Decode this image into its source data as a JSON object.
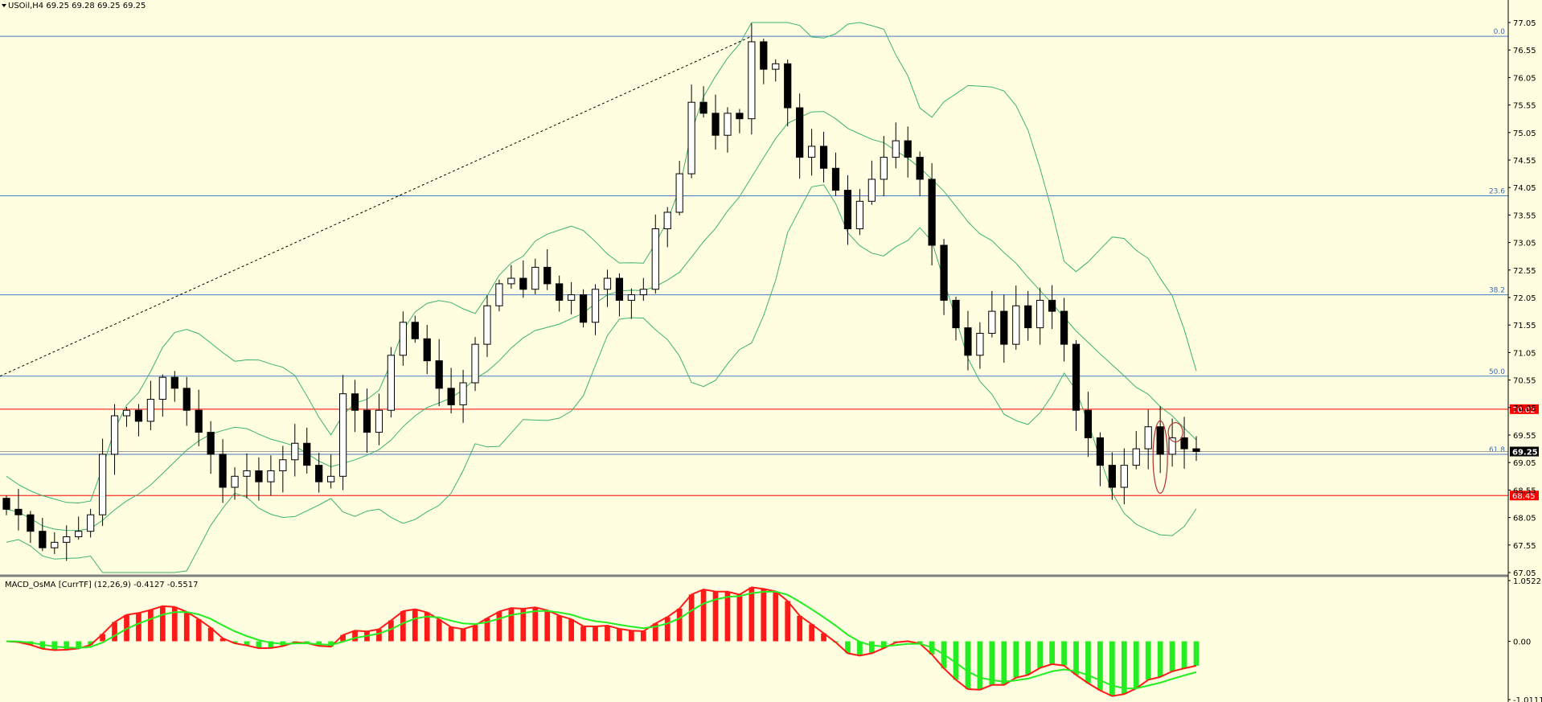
{
  "header": {
    "symbol_line": "USOil,H4  69.25 69.28 69.25 69.25"
  },
  "indicator": {
    "label": "MACD_OsMA [CurrTF] (12,26,9) -0.4127 -0.5517",
    "axis_labels": [
      "1.0522",
      "0.00",
      "-1.0111"
    ]
  },
  "price_axis": {
    "labels": [
      "77.05",
      "76.55",
      "76.05",
      "75.55",
      "75.05",
      "74.55",
      "74.05",
      "73.55",
      "73.05",
      "72.55",
      "72.05",
      "71.55",
      "71.05",
      "70.55",
      "70.05",
      "69.55",
      "69.05",
      "68.55",
      "68.05",
      "67.55",
      "67.05"
    ]
  },
  "fib_levels": [
    {
      "label": "0.0",
      "price": 76.8
    },
    {
      "label": "23.6",
      "price": 73.9
    },
    {
      "label": "38.2",
      "price": 72.1
    },
    {
      "label": "50.0",
      "price": 70.62
    },
    {
      "label": "61.8",
      "price": 69.2
    }
  ],
  "horizontal_levels": [
    {
      "label": "70.02",
      "price": 70.02,
      "color": "#ff0000"
    },
    {
      "label": "68.45",
      "price": 68.45,
      "color": "#ff0000"
    }
  ],
  "current_price": {
    "label": "69.25",
    "price": 69.25
  },
  "colors": {
    "background": "#fffee0",
    "bands": "#3cb371",
    "fib": "#4a7cc7",
    "level": "#ff0000",
    "macd_up": "#ff1a1a",
    "macd_down": "#22ee22",
    "candle_bull": "#ffffff",
    "candle_bear": "#000000"
  },
  "chart_data": {
    "type": "candlestick",
    "timeframe": "H4",
    "symbol": "USOil",
    "closes": [
      68.2,
      68.1,
      67.8,
      67.5,
      67.6,
      67.7,
      67.8,
      68.1,
      69.2,
      69.9,
      70.0,
      69.8,
      70.2,
      70.6,
      70.4,
      70.0,
      69.6,
      69.2,
      68.6,
      68.8,
      68.9,
      68.7,
      68.9,
      69.1,
      69.4,
      69.0,
      68.7,
      68.8,
      70.3,
      70.0,
      69.6,
      70.0,
      71.0,
      71.6,
      71.3,
      70.9,
      70.4,
      70.1,
      70.5,
      71.2,
      71.9,
      72.3,
      72.4,
      72.2,
      72.6,
      72.3,
      72.0,
      72.1,
      71.6,
      72.2,
      72.4,
      72.0,
      72.1,
      72.2,
      73.3,
      73.6,
      74.3,
      75.6,
      75.4,
      75.0,
      75.4,
      75.3,
      76.7,
      76.2,
      76.3,
      75.5,
      74.6,
      74.8,
      74.4,
      74.0,
      73.3,
      73.8,
      74.2,
      74.6,
      74.9,
      74.6,
      74.2,
      73.0,
      72.0,
      71.5,
      71.0,
      71.4,
      71.8,
      71.2,
      71.9,
      71.5,
      72.0,
      71.8,
      71.2,
      70.0,
      69.5,
      69.0,
      68.6,
      69.0,
      69.3,
      69.7,
      69.2,
      69.5,
      69.3,
      69.25
    ],
    "fib_annotations": [
      "0.0",
      "23.6",
      "38.2",
      "50.0",
      "61.8"
    ],
    "levels": [
      70.02,
      68.45
    ],
    "ylim": [
      67.05,
      77.05
    ],
    "macd_ylim": [
      -1.0111,
      1.0522
    ]
  }
}
